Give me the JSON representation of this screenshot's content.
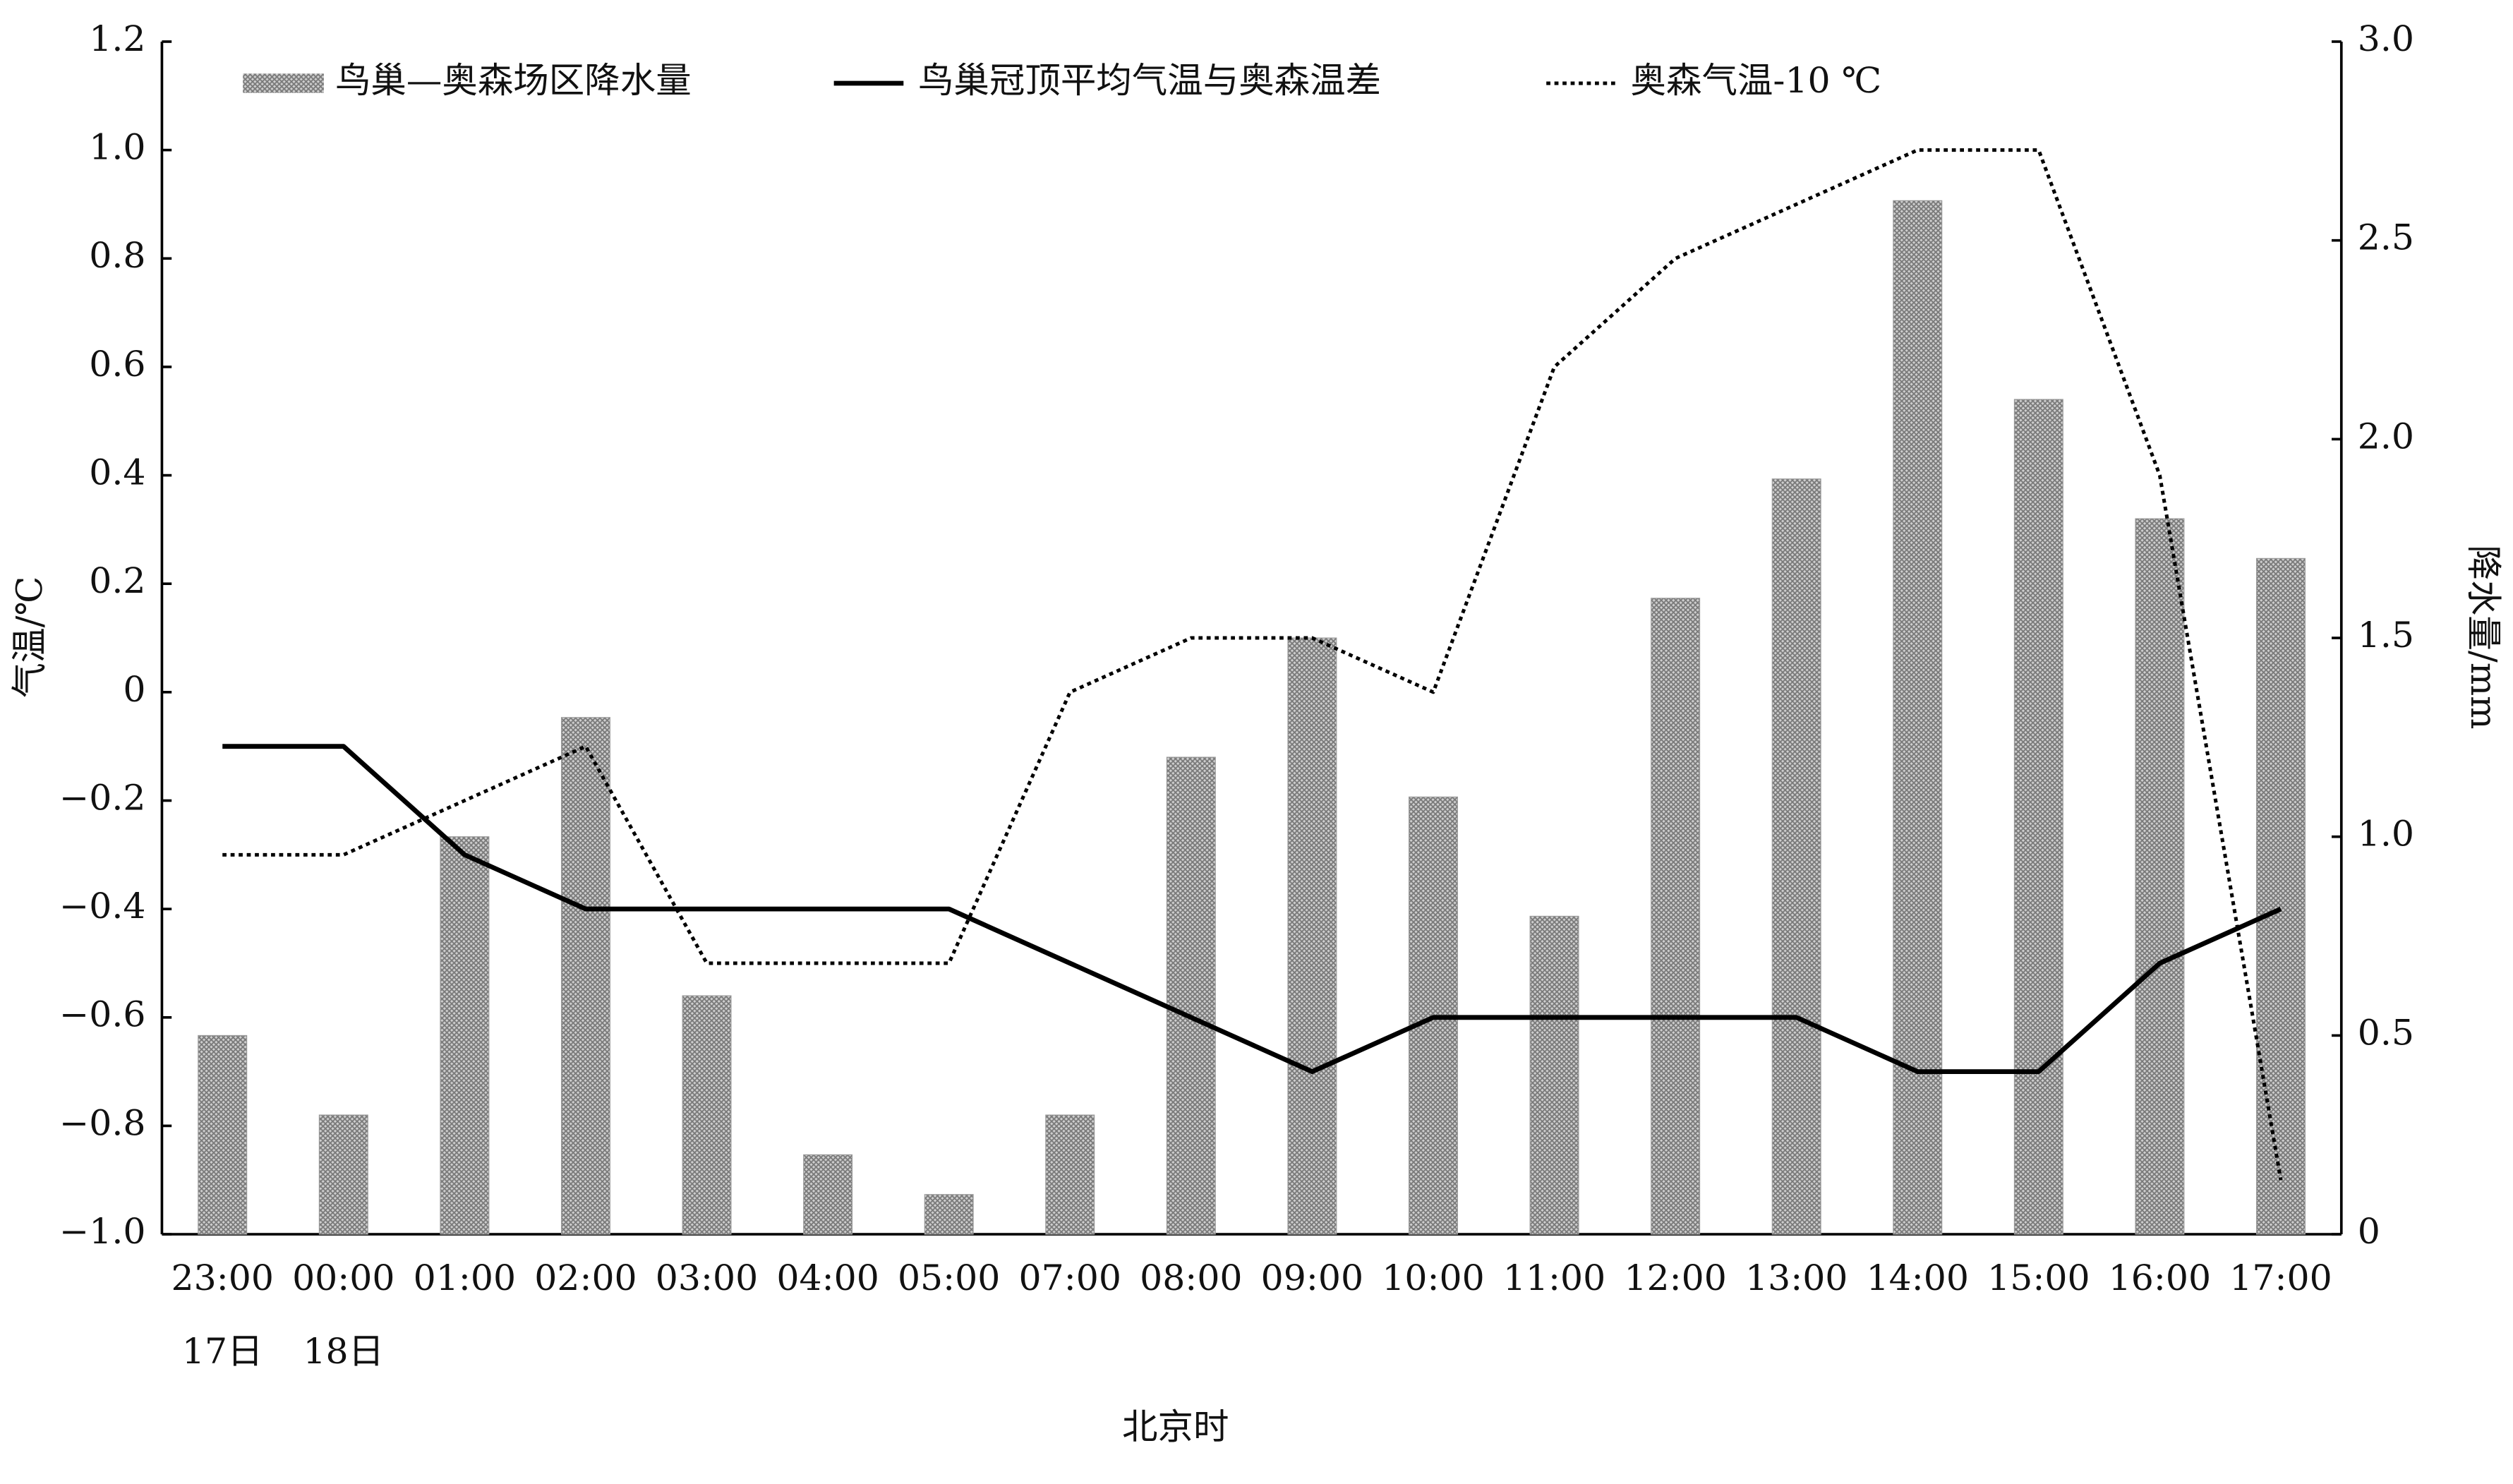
{
  "chart_data": {
    "type": "bar-line",
    "categories": [
      "23:00",
      "00:00",
      "01:00",
      "02:00",
      "03:00",
      "04:00",
      "05:00",
      "07:00",
      "08:00",
      "09:00",
      "10:00",
      "11:00",
      "12:00",
      "13:00",
      "14:00",
      "15:00",
      "16:00",
      "17:00"
    ],
    "date_labels": [
      "17日",
      "18日",
      null,
      null,
      null,
      null,
      null,
      null,
      null,
      null,
      null,
      null,
      null,
      null,
      null,
      null,
      null,
      null
    ],
    "x_label": "北京时",
    "y_label": "气温/℃",
    "y2_label": "降水量/mm",
    "ylim": [
      -1.0,
      1.2
    ],
    "yticks": [
      {
        "value": -1.0,
        "label": "−1.0"
      },
      {
        "value": -0.8,
        "label": "−0.8"
      },
      {
        "value": -0.6,
        "label": "−0.6"
      },
      {
        "value": -0.4,
        "label": "−0.4"
      },
      {
        "value": -0.2,
        "label": "−0.2"
      },
      0,
      0.2,
      0.4,
      0.6,
      0.8,
      {
        "value": 1.0,
        "label": "1.0"
      },
      1.2
    ],
    "y2lim": [
      0,
      3.0
    ],
    "y2ticks": [
      0,
      0.5,
      {
        "value": 1.0,
        "label": "1.0"
      },
      1.5,
      {
        "value": 2.0,
        "label": "2.0"
      },
      2.5,
      {
        "value": 3.0,
        "label": "3.0"
      }
    ],
    "series": [
      {
        "name": "鸟巢—奥森场区降水量",
        "type": "bar",
        "axis": "y2",
        "color": "#9a9a9a",
        "values": [
          0.5,
          0.3,
          1.0,
          1.3,
          0.6,
          0.2,
          0.1,
          0.3,
          1.2,
          1.5,
          1.1,
          0.8,
          1.6,
          1.9,
          2.6,
          2.1,
          1.8,
          1.7
        ]
      },
      {
        "name": "鸟巢冠顶平均气温与奥森温差",
        "type": "line",
        "color": "#000000",
        "dash": "solid",
        "values": [
          -0.1,
          -0.1,
          -0.3,
          -0.4,
          -0.4,
          -0.4,
          -0.4,
          -0.5,
          -0.6,
          -0.7,
          -0.6,
          -0.6,
          -0.6,
          -0.6,
          -0.7,
          -0.7,
          -0.5,
          -0.4
        ]
      },
      {
        "name": "奥森气温-10 ℃",
        "type": "line",
        "color": "#000000",
        "dash": "dotted",
        "values": [
          -0.3,
          -0.3,
          -0.2,
          -0.1,
          -0.5,
          -0.5,
          -0.5,
          0.0,
          0.1,
          0.1,
          0.0,
          0.6,
          0.8,
          0.9,
          1.0,
          1.0,
          0.4,
          -0.9
        ]
      }
    ]
  }
}
